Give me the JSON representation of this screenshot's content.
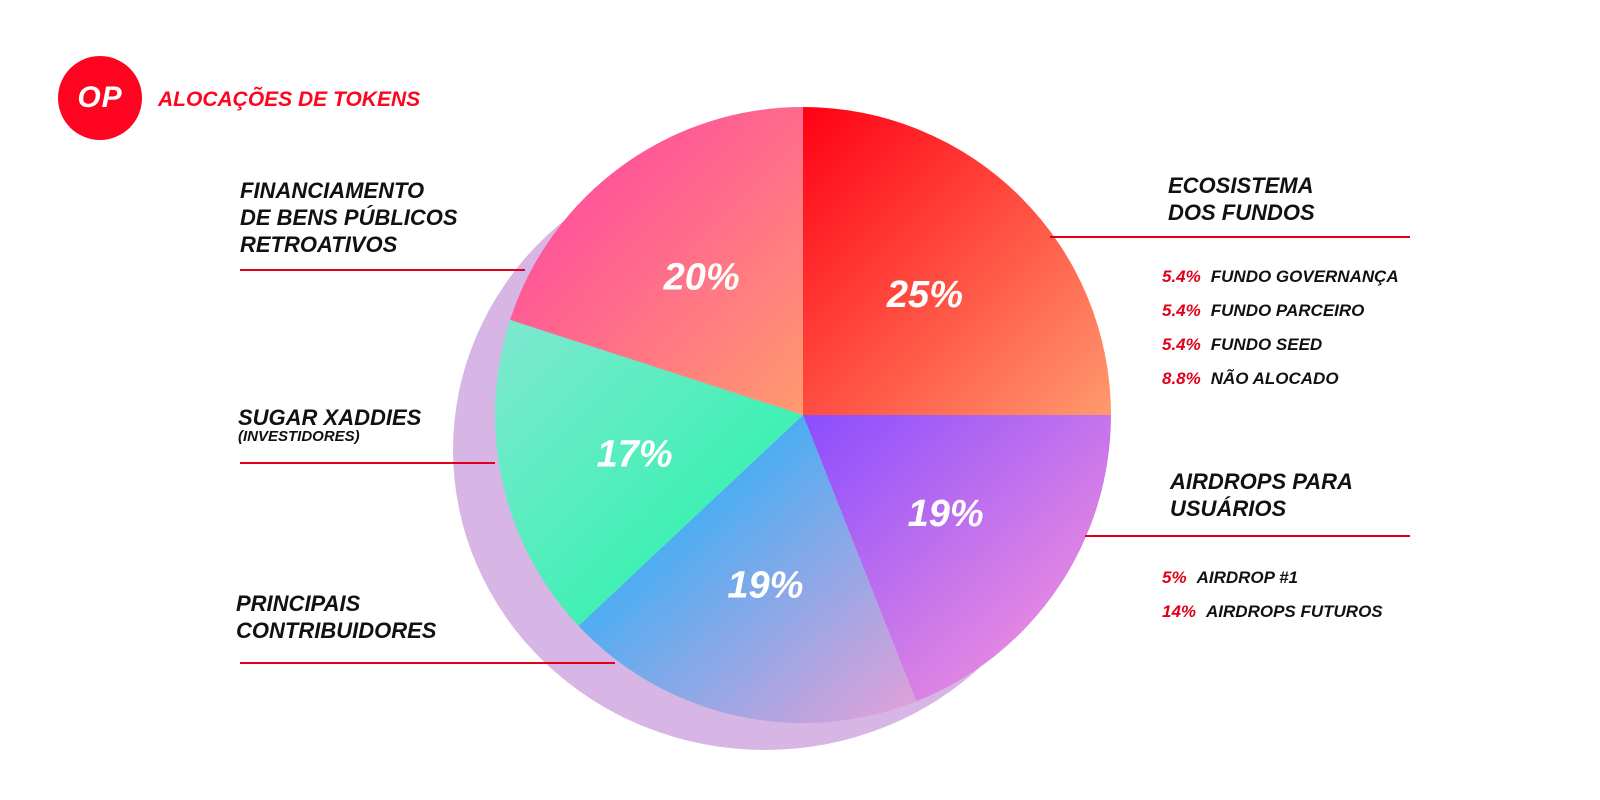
{
  "header": {
    "logo_text": "OP",
    "title": "ALOCAÇÕES DE TOKENS"
  },
  "colors": {
    "accent": "#ff0420",
    "rule": "#e0001a"
  },
  "chart_data": {
    "type": "pie",
    "title": "ALOCAÇÕES DE TOKENS",
    "slices": [
      {
        "name": "ECOSISTEMA DOS FUNDOS",
        "value": 25,
        "label": "25%",
        "colors": [
          "#ff0014",
          "#ff9a6e"
        ]
      },
      {
        "name": "AIRDROPS PARA USUÁRIOS",
        "value": 19,
        "label": "19%",
        "colors": [
          "#8a4dff",
          "#ff9ad8"
        ]
      },
      {
        "name": "PRINCIPAIS CONTRIBUIDORES",
        "value": 19,
        "label": "19%",
        "colors": [
          "#00b4ff",
          "#e6a0d8"
        ]
      },
      {
        "name": "SUGAR XADDIES (INVESTIDORES)",
        "value": 17,
        "label": "17%",
        "colors": [
          "#7fe8d0",
          "#1ef5a5"
        ]
      },
      {
        "name": "FINANCIAMENTO DE BENS PÚBLICOS RETROATIVOS",
        "value": 20,
        "label": "20%",
        "colors": [
          "#ff3ca8",
          "#ff9a6e"
        ]
      }
    ],
    "sub_breakdowns": {
      "ecosistema": [
        {
          "pct": "5.4%",
          "name": "FUNDO GOVERNANÇA",
          "value": 5.4
        },
        {
          "pct": "5.4%",
          "name": "FUNDO PARCEIRO",
          "value": 5.4
        },
        {
          "pct": "5.4%",
          "name": "FUNDO SEED",
          "value": 5.4
        },
        {
          "pct": "8.8%",
          "name": "NÃO ALOCADO",
          "value": 8.8
        }
      ],
      "airdrops": [
        {
          "pct": "5%",
          "name": "AIRDROP #1",
          "value": 5
        },
        {
          "pct": "14%",
          "name": "AIRDROPS FUTUROS",
          "value": 14
        }
      ]
    }
  },
  "labels": {
    "financiamento": [
      "FINANCIAMENTO",
      "DE BENS PÚBLICOS",
      "RETROATIVOS"
    ],
    "sugar": "SUGAR XADDIES",
    "sugar_sub": "(INVESTIDORES)",
    "principais": [
      "PRINCIPAIS",
      "CONTRIBUIDORES"
    ],
    "ecosistema": [
      "ECOSISTEMA",
      "DOS FUNDOS"
    ],
    "airdrops": [
      "AIRDROPS PARA",
      "USUÁRIOS"
    ]
  }
}
